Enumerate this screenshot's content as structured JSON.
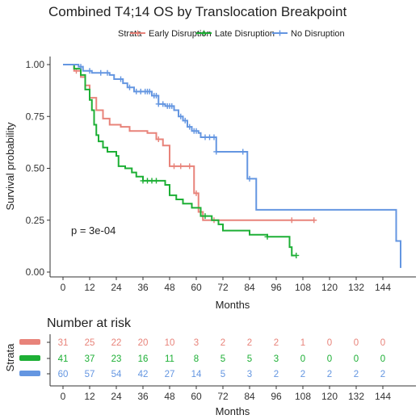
{
  "chart_data": {
    "type": "line",
    "subtype": "kaplan-meier",
    "title": "Combined T4;14 OS by Translocation Breakpoint",
    "xlabel": "Months",
    "ylabel": "Survival probability",
    "xlim": [
      0,
      150
    ],
    "ylim": [
      0,
      1
    ],
    "x_ticks": [
      "0",
      "12",
      "24",
      "36",
      "48",
      "60",
      "72",
      "84",
      "96",
      "108",
      "120",
      "132",
      "144"
    ],
    "y_ticks": [
      "0.00",
      "0.25",
      "0.50",
      "0.75",
      "1.00"
    ],
    "legend": {
      "title": "Strata",
      "placement": "top"
    },
    "annotation": "p = 3e-04",
    "grid": false,
    "series": [
      {
        "name": "Early Disruption",
        "color": "#E8837A",
        "steps": [
          [
            0,
            1.0
          ],
          [
            5,
            0.97
          ],
          [
            8,
            0.94
          ],
          [
            10,
            0.9
          ],
          [
            12,
            0.84
          ],
          [
            15,
            0.78
          ],
          [
            18,
            0.74
          ],
          [
            21,
            0.71
          ],
          [
            24,
            0.71
          ],
          [
            26,
            0.7
          ],
          [
            30,
            0.68
          ],
          [
            38,
            0.67
          ],
          [
            42,
            0.64
          ],
          [
            45,
            0.61
          ],
          [
            48,
            0.51
          ],
          [
            58,
            0.51
          ],
          [
            59,
            0.38
          ],
          [
            61,
            0.29
          ],
          [
            63,
            0.25
          ],
          [
            113,
            0.25
          ]
        ],
        "censor_x": [
          6,
          43,
          50,
          53,
          57,
          60,
          68,
          103,
          113
        ]
      },
      {
        "name": "Late Disruption",
        "color": "#1DAF35",
        "steps": [
          [
            0,
            1.0
          ],
          [
            5,
            0.98
          ],
          [
            8,
            0.95
          ],
          [
            10,
            0.88
          ],
          [
            12,
            0.83
          ],
          [
            13,
            0.78
          ],
          [
            14,
            0.71
          ],
          [
            15,
            0.66
          ],
          [
            16,
            0.63
          ],
          [
            18,
            0.6
          ],
          [
            20,
            0.58
          ],
          [
            24,
            0.56
          ],
          [
            25,
            0.51
          ],
          [
            28,
            0.5
          ],
          [
            31,
            0.48
          ],
          [
            33,
            0.46
          ],
          [
            36,
            0.44
          ],
          [
            44,
            0.44
          ],
          [
            46,
            0.42
          ],
          [
            48,
            0.37
          ],
          [
            51,
            0.35
          ],
          [
            54,
            0.33
          ],
          [
            58,
            0.31
          ],
          [
            62,
            0.27
          ],
          [
            67,
            0.25
          ],
          [
            70,
            0.23
          ],
          [
            72,
            0.2
          ],
          [
            84,
            0.18
          ],
          [
            92,
            0.17
          ],
          [
            102,
            0.12
          ],
          [
            103,
            0.08
          ],
          [
            105,
            0.08
          ]
        ],
        "censor_x": [
          36,
          38,
          40,
          42,
          64,
          92,
          105
        ]
      },
      {
        "name": "No Disruption",
        "color": "#6496E1",
        "steps": [
          [
            0,
            1.0
          ],
          [
            7,
            0.99
          ],
          [
            9,
            0.97
          ],
          [
            13,
            0.96
          ],
          [
            21,
            0.95
          ],
          [
            23,
            0.93
          ],
          [
            27,
            0.91
          ],
          [
            29,
            0.89
          ],
          [
            32,
            0.87
          ],
          [
            40,
            0.85
          ],
          [
            43,
            0.81
          ],
          [
            46,
            0.8
          ],
          [
            50,
            0.78
          ],
          [
            52,
            0.75
          ],
          [
            54,
            0.73
          ],
          [
            56,
            0.7
          ],
          [
            58,
            0.68
          ],
          [
            61,
            0.67
          ],
          [
            62,
            0.65
          ],
          [
            69,
            0.58
          ],
          [
            80,
            0.58
          ],
          [
            83,
            0.45
          ],
          [
            86,
            0.45
          ],
          [
            87,
            0.3
          ],
          [
            149,
            0.3
          ],
          [
            150,
            0.15
          ],
          [
            152,
            0.02
          ]
        ],
        "censor_x": [
          8,
          12,
          17,
          20,
          26,
          30,
          33,
          35,
          37,
          38,
          39,
          41,
          42,
          43,
          45,
          47,
          48,
          49,
          53,
          55,
          57,
          59,
          60,
          64,
          66,
          68,
          69,
          81,
          84
        ]
      }
    ],
    "risk_table": {
      "title": "Number at risk",
      "xlabel": "Months",
      "ylabel": "Strata",
      "time_points": [
        0,
        12,
        24,
        36,
        48,
        60,
        72,
        84,
        96,
        108,
        120,
        132,
        144
      ],
      "rows": [
        {
          "color": "#E8837A",
          "counts": [
            "31",
            "25",
            "22",
            "20",
            "10",
            "3",
            "2",
            "2",
            "2",
            "1",
            "0",
            "0",
            "0"
          ]
        },
        {
          "color": "#1DAF35",
          "counts": [
            "41",
            "37",
            "23",
            "16",
            "11",
            "8",
            "5",
            "5",
            "3",
            "0",
            "0",
            "0",
            "0"
          ]
        },
        {
          "color": "#6496E1",
          "counts": [
            "60",
            "57",
            "54",
            "42",
            "27",
            "14",
            "5",
            "3",
            "2",
            "2",
            "2",
            "2",
            "2"
          ]
        }
      ]
    }
  }
}
